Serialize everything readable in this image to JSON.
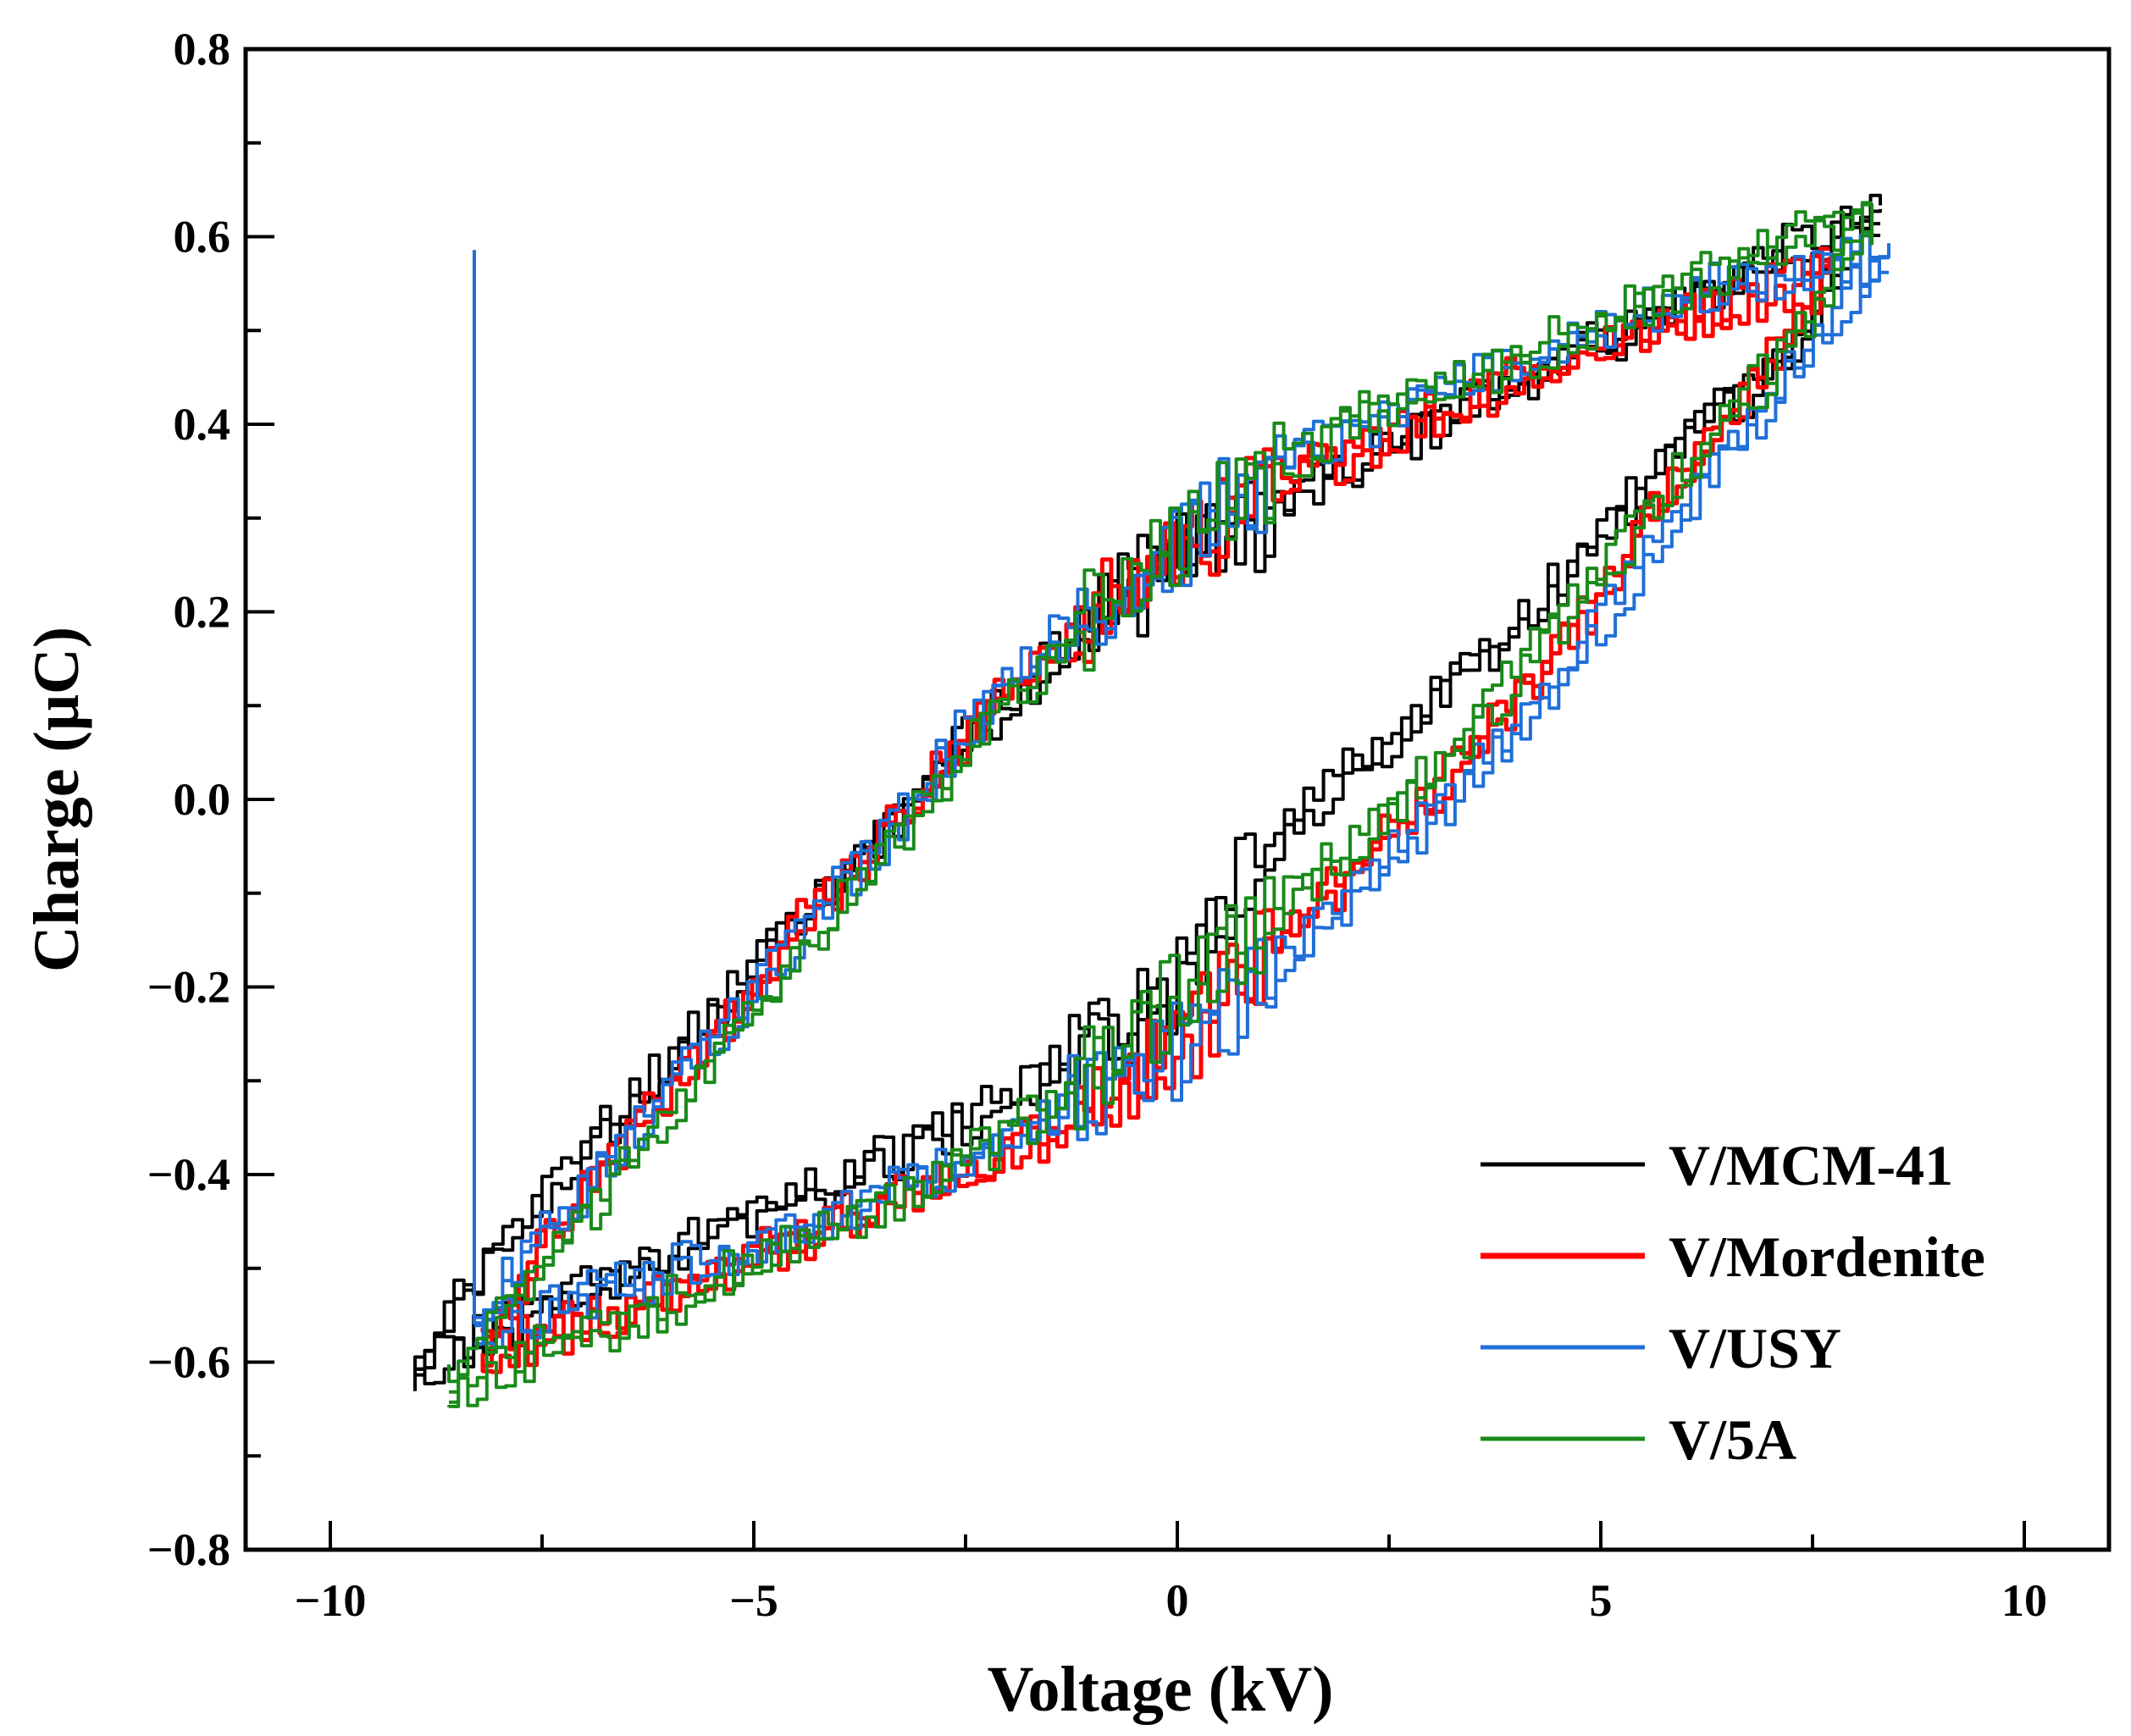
{
  "chart_data": {
    "type": "line",
    "title": "",
    "xlabel": "Voltage (kV)",
    "ylabel": "Charge (μC)",
    "xlim": [
      -11,
      11
    ],
    "ylim": [
      -0.8,
      0.8
    ],
    "xticks": [
      -10,
      -5,
      0,
      5,
      10
    ],
    "xtick_labels": [
      "−10",
      "−5",
      "0",
      "5",
      "10"
    ],
    "yticks": [
      -0.8,
      -0.6,
      -0.4,
      -0.2,
      0.0,
      0.2,
      0.4,
      0.6,
      0.8
    ],
    "ytick_labels": [
      "−0.8",
      "−0.6",
      "−0.4",
      "−0.2",
      "0.0",
      "0.2",
      "0.4",
      "0.6",
      "0.8"
    ],
    "grid": false,
    "legend_position": "bottom-right",
    "series": [
      {
        "name": "V/MCM-41",
        "color": "#000000",
        "upper": [
          [
            -9.0,
            -0.61
          ],
          [
            -8.5,
            -0.53
          ],
          [
            -8.0,
            -0.47
          ],
          [
            -7.0,
            -0.37
          ],
          [
            -6.0,
            -0.28
          ],
          [
            -5.0,
            -0.17
          ],
          [
            -4.0,
            -0.08
          ],
          [
            -3.0,
            0.02
          ],
          [
            -2.0,
            0.11
          ],
          [
            -1.0,
            0.19
          ],
          [
            0.0,
            0.26
          ],
          [
            1.0,
            0.3
          ],
          [
            2.0,
            0.35
          ],
          [
            3.0,
            0.4
          ],
          [
            4.0,
            0.45
          ],
          [
            5.0,
            0.49
          ],
          [
            6.0,
            0.53
          ],
          [
            7.0,
            0.58
          ],
          [
            8.3,
            0.62
          ]
        ],
        "lower": [
          [
            8.3,
            0.62
          ],
          [
            7.6,
            0.52
          ],
          [
            7.0,
            0.45
          ],
          [
            6.0,
            0.38
          ],
          [
            5.0,
            0.27
          ],
          [
            4.0,
            0.18
          ],
          [
            3.0,
            0.1
          ],
          [
            2.0,
            0.02
          ],
          [
            1.0,
            -0.06
          ],
          [
            0.0,
            -0.2
          ],
          [
            -1.0,
            -0.26
          ],
          [
            -2.0,
            -0.32
          ],
          [
            -3.0,
            -0.37
          ],
          [
            -4.0,
            -0.41
          ],
          [
            -5.0,
            -0.44
          ],
          [
            -6.0,
            -0.49
          ],
          [
            -7.0,
            -0.53
          ],
          [
            -8.0,
            -0.57
          ],
          [
            -9.0,
            -0.61
          ]
        ]
      },
      {
        "name": "V/Mordenite",
        "color": "#ff0000",
        "upper": [
          [
            -8.2,
            -0.59
          ],
          [
            -7.5,
            -0.47
          ],
          [
            -6.5,
            -0.36
          ],
          [
            -5.5,
            -0.25
          ],
          [
            -4.5,
            -0.13
          ],
          [
            -3.5,
            -0.04
          ],
          [
            -2.5,
            0.07
          ],
          [
            -1.5,
            0.16
          ],
          [
            -0.5,
            0.23
          ],
          [
            0.5,
            0.3
          ],
          [
            1.5,
            0.35
          ],
          [
            2.5,
            0.39
          ],
          [
            3.5,
            0.43
          ],
          [
            4.5,
            0.47
          ],
          [
            5.5,
            0.5
          ],
          [
            6.5,
            0.53
          ],
          [
            7.7,
            0.56
          ]
        ],
        "lower": [
          [
            7.7,
            0.56
          ],
          [
            7.0,
            0.46
          ],
          [
            6.0,
            0.34
          ],
          [
            5.0,
            0.21
          ],
          [
            4.0,
            0.1
          ],
          [
            3.0,
            0.0
          ],
          [
            2.0,
            -0.09
          ],
          [
            1.0,
            -0.17
          ],
          [
            0.0,
            -0.27
          ],
          [
            -1.0,
            -0.34
          ],
          [
            -2.0,
            -0.38
          ],
          [
            -3.0,
            -0.42
          ],
          [
            -4.0,
            -0.45
          ],
          [
            -5.0,
            -0.49
          ],
          [
            -6.0,
            -0.53
          ],
          [
            -7.0,
            -0.56
          ],
          [
            -8.2,
            -0.59
          ]
        ]
      },
      {
        "name": "V/USY",
        "color": "#1f6fd8",
        "upper": [
          [
            -8.3,
            -0.56
          ],
          [
            -7.5,
            -0.46
          ],
          [
            -6.5,
            -0.36
          ],
          [
            -5.5,
            -0.25
          ],
          [
            -4.5,
            -0.14
          ],
          [
            -3.5,
            -0.04
          ],
          [
            -2.5,
            0.08
          ],
          [
            -1.5,
            0.17
          ],
          [
            -0.5,
            0.24
          ],
          [
            0.5,
            0.31
          ],
          [
            1.5,
            0.37
          ],
          [
            2.5,
            0.41
          ],
          [
            3.5,
            0.45
          ],
          [
            4.5,
            0.49
          ],
          [
            5.5,
            0.52
          ],
          [
            6.5,
            0.55
          ],
          [
            8.4,
            0.58
          ]
        ],
        "lower": [
          [
            8.4,
            0.58
          ],
          [
            7.5,
            0.48
          ],
          [
            6.5,
            0.36
          ],
          [
            5.5,
            0.24
          ],
          [
            4.5,
            0.12
          ],
          [
            3.5,
            0.02
          ],
          [
            2.5,
            -0.07
          ],
          [
            1.5,
            -0.15
          ],
          [
            0.5,
            -0.24
          ],
          [
            -0.5,
            -0.3
          ],
          [
            -1.5,
            -0.34
          ],
          [
            -2.5,
            -0.39
          ],
          [
            -3.5,
            -0.42
          ],
          [
            -4.5,
            -0.46
          ],
          [
            -5.5,
            -0.49
          ],
          [
            -6.5,
            -0.52
          ],
          [
            -7.5,
            -0.55
          ],
          [
            -8.3,
            -0.56
          ]
        ]
      },
      {
        "name": "V/5A",
        "color": "#1a8a1a",
        "upper": [
          [
            -8.6,
            -0.63
          ],
          [
            -8.0,
            -0.55
          ],
          [
            -7.0,
            -0.44
          ],
          [
            -6.0,
            -0.33
          ],
          [
            -5.0,
            -0.22
          ],
          [
            -4.0,
            -0.11
          ],
          [
            -3.0,
            0.0
          ],
          [
            -2.0,
            0.11
          ],
          [
            -1.0,
            0.2
          ],
          [
            0.0,
            0.28
          ],
          [
            1.0,
            0.34
          ],
          [
            2.0,
            0.4
          ],
          [
            3.0,
            0.44
          ],
          [
            4.0,
            0.47
          ],
          [
            5.0,
            0.51
          ],
          [
            6.0,
            0.55
          ],
          [
            7.0,
            0.59
          ],
          [
            8.2,
            0.62
          ]
        ],
        "lower": [
          [
            8.2,
            0.62
          ],
          [
            7.5,
            0.5
          ],
          [
            6.5,
            0.4
          ],
          [
            5.5,
            0.29
          ],
          [
            4.5,
            0.18
          ],
          [
            3.5,
            0.07
          ],
          [
            2.5,
            -0.02
          ],
          [
            1.5,
            -0.1
          ],
          [
            0.5,
            -0.18
          ],
          [
            -0.5,
            -0.26
          ],
          [
            -1.5,
            -0.33
          ],
          [
            -2.5,
            -0.39
          ],
          [
            -3.5,
            -0.44
          ],
          [
            -4.5,
            -0.48
          ],
          [
            -5.5,
            -0.52
          ],
          [
            -6.5,
            -0.56
          ],
          [
            -7.5,
            -0.59
          ],
          [
            -8.6,
            -0.63
          ]
        ]
      }
    ]
  }
}
